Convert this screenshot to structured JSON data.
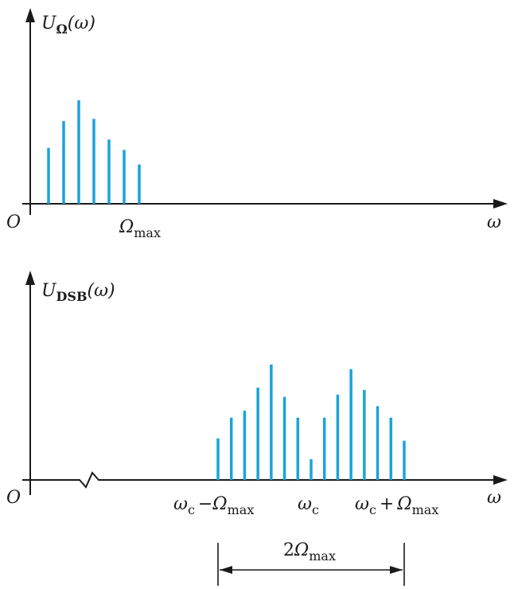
{
  "colors": {
    "spectral_line": "#1aa3dc",
    "axis": "#1a1a1a"
  },
  "top_plot": {
    "y_label": {
      "main": "U",
      "sub": "Ω",
      "arg": "(ω)"
    },
    "origin": "O",
    "x_label": "ω",
    "tick_label": {
      "main": "Ω",
      "sub": "max"
    },
    "lines": [
      0.54,
      0.8,
      1.0,
      0.82,
      0.62,
      0.52,
      0.38
    ]
  },
  "bottom_plot": {
    "y_label": {
      "main": "U",
      "sub": "DSB",
      "arg": "(ω)"
    },
    "origin": "O",
    "x_label": "ω",
    "tick_left": {
      "a": "ω",
      "a_sub": "c",
      "op": "−",
      "b": "Ω",
      "b_sub": "max"
    },
    "tick_center": {
      "a": "ω",
      "a_sub": "c"
    },
    "tick_right": {
      "a": "ω",
      "a_sub": "c",
      "op": "+",
      "b": "Ω",
      "b_sub": "max"
    },
    "lines": [
      0.36,
      0.54,
      0.6,
      0.8,
      1.0,
      0.72,
      0.54,
      0.18,
      0.54,
      0.74,
      0.96,
      0.78,
      0.64,
      0.54,
      0.34
    ]
  },
  "bandwidth": {
    "prefix": "2",
    "main": "Ω",
    "sub": "max"
  }
}
